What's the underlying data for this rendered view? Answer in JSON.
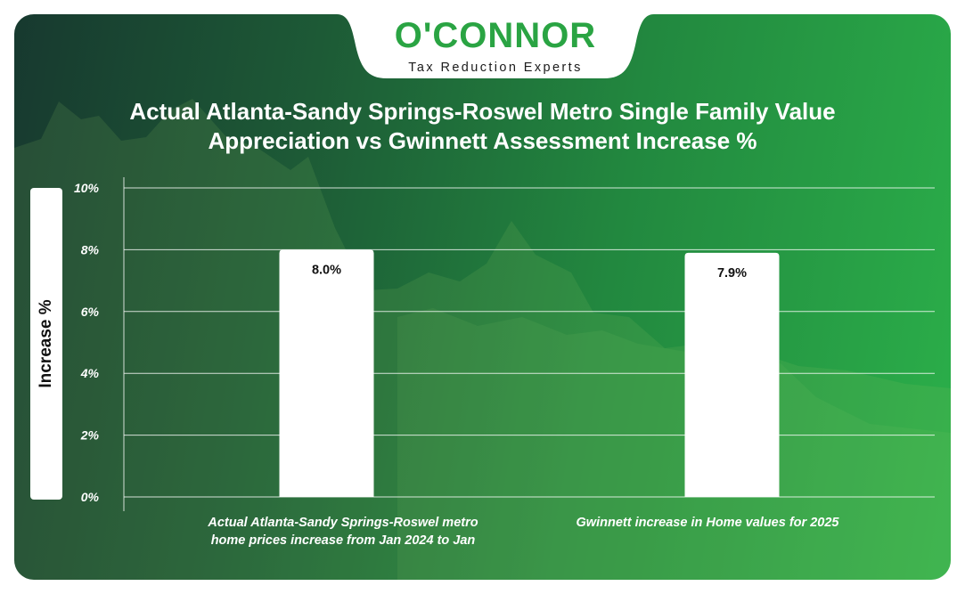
{
  "brand": {
    "name": "O'CONNOR",
    "tagline": "Tax Reduction Experts"
  },
  "colors": {
    "background_dark": "#17392f",
    "background_light": "#2bb04a",
    "brand_green": "#2aa443",
    "bar": "#ffffff"
  },
  "chart_data": {
    "type": "bar",
    "title": "Actual Atlanta-Sandy Springs-Roswel Metro Single Family Value Appreciation vs Gwinnett Assessment Increase %",
    "title_lines": [
      "Actual Atlanta-Sandy Springs-Roswel Metro Single Family Value",
      "Appreciation vs Gwinnett Assessment Increase %"
    ],
    "ylabel": "Increase %",
    "xlabel": "",
    "ylim": [
      0,
      10
    ],
    "yticks": [
      "0%",
      "2%",
      "4%",
      "6%",
      "8%",
      "10%"
    ],
    "grid": true,
    "legend": "none",
    "categories": [
      "Actual Atlanta-Sandy Springs-Roswel metro home prices increase from Jan 2024 to Jan",
      "Gwinnett increase in Home values for 2025"
    ],
    "category_lines": [
      [
        "Actual Atlanta-Sandy Springs-Roswel metro",
        "home prices increase from Jan 2024 to Jan"
      ],
      [
        "Gwinnett increase in Home values for 2025"
      ]
    ],
    "values": [
      8.0,
      7.9
    ],
    "data_labels": [
      "8.0%",
      "7.9%"
    ]
  }
}
